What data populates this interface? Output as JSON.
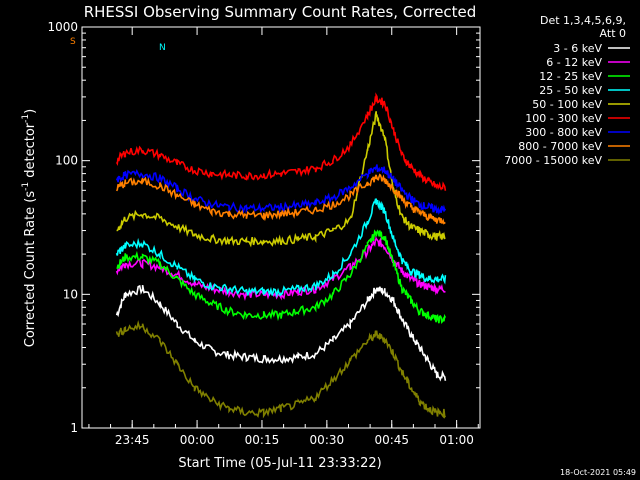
{
  "chart_data": {
    "type": "line",
    "title": "RHESSI Observing Summary Count Rates, Corrected",
    "xlabel": "Start Time (05-Jul-11 23:33:22)",
    "ylabel": "Corrected Count Rate (s",
    "ylabel_sup1": "-1",
    "ylabel_mid": " detector",
    "ylabel_sup2": "-1",
    "ylabel_end": ")",
    "y_scale": "log",
    "ylim": [
      1,
      1000
    ],
    "xlim_minutes": [
      0,
      92
    ],
    "x_ticks": [
      {
        "label": "23:45",
        "min": 11.6
      },
      {
        "label": "00:00",
        "min": 26.6
      },
      {
        "label": "00:15",
        "min": 41.6
      },
      {
        "label": "00:30",
        "min": 56.6
      },
      {
        "label": "00:45",
        "min": 71.6
      },
      {
        "label": "01:00",
        "min": 86.6
      }
    ],
    "y_ticks": [
      {
        "label": "1",
        "value": 1
      },
      {
        "label": "10",
        "value": 10
      },
      {
        "label": "100",
        "value": 100
      },
      {
        "label": "1000",
        "value": 1000
      }
    ],
    "legend_header": [
      "Det 1,3,4,5,6,9,",
      "Att 0"
    ],
    "series": [
      {
        "name": "3 - 6 keV",
        "color": "#ffffff",
        "x": [
          8,
          10,
          14,
          18,
          22,
          26,
          30,
          34,
          38,
          42,
          46,
          50,
          54,
          58,
          62,
          66,
          68,
          70,
          72,
          74,
          76,
          78,
          80,
          82,
          84
        ],
        "y": [
          7,
          10,
          11,
          8.5,
          6,
          4.5,
          3.8,
          3.5,
          3.4,
          3.3,
          3.3,
          3.4,
          3.6,
          4.5,
          6,
          9,
          11,
          10.5,
          9,
          6.5,
          5,
          4,
          3.2,
          2.5,
          2.4
        ]
      },
      {
        "name": "6 - 12 keV",
        "color": "#ff00ff",
        "x": [
          8,
          10,
          14,
          18,
          22,
          26,
          30,
          34,
          38,
          42,
          46,
          50,
          54,
          58,
          62,
          66,
          68,
          70,
          72,
          74,
          76,
          78,
          80,
          82,
          84
        ],
        "y": [
          15,
          17,
          17,
          16,
          14,
          12,
          11,
          10.5,
          10,
          10,
          10,
          10.5,
          11,
          13,
          16,
          21,
          25,
          23,
          18,
          15,
          13,
          12,
          11.5,
          11,
          11
        ]
      },
      {
        "name": "12 - 25 keV",
        "color": "#00ff00",
        "x": [
          8,
          10,
          14,
          18,
          22,
          26,
          30,
          34,
          38,
          42,
          46,
          50,
          54,
          58,
          62,
          66,
          68,
          70,
          72,
          74,
          76,
          78,
          80,
          82,
          84
        ],
        "y": [
          16,
          19,
          19,
          17,
          13,
          10,
          8.5,
          7.5,
          7,
          7,
          7,
          7.5,
          8,
          10,
          14,
          23,
          29,
          27,
          17,
          11,
          9,
          7.5,
          7,
          6.5,
          6.5
        ]
      },
      {
        "name": "25 - 50 keV",
        "color": "#00ffff",
        "x": [
          8,
          10,
          14,
          18,
          22,
          26,
          30,
          34,
          38,
          42,
          46,
          50,
          54,
          58,
          62,
          66,
          68,
          70,
          72,
          74,
          76,
          78,
          80,
          82,
          84
        ],
        "y": [
          20,
          23,
          24,
          20,
          16,
          13,
          11.5,
          11,
          10.5,
          10.5,
          10.5,
          11,
          11.5,
          14,
          20,
          35,
          50,
          42,
          26,
          18,
          15,
          14,
          13,
          13,
          13
        ]
      },
      {
        "name": "50 - 100 keV",
        "color": "#cccc00",
        "x": [
          8,
          10,
          14,
          18,
          22,
          26,
          30,
          34,
          38,
          42,
          46,
          50,
          54,
          58,
          62,
          66,
          68,
          70,
          72,
          74,
          76,
          78,
          80,
          82,
          84
        ],
        "y": [
          30,
          37,
          40,
          37,
          32,
          28,
          26,
          25,
          25,
          25,
          25,
          26,
          27,
          30,
          36,
          120,
          220,
          150,
          60,
          38,
          32,
          30,
          28,
          27,
          27
        ]
      },
      {
        "name": "100 - 300 keV",
        "color": "#ff0000",
        "x": [
          8,
          10,
          14,
          18,
          22,
          26,
          30,
          34,
          38,
          42,
          46,
          50,
          54,
          58,
          62,
          66,
          68,
          70,
          72,
          74,
          76,
          78,
          80,
          82,
          84
        ],
        "y": [
          100,
          115,
          120,
          110,
          95,
          85,
          80,
          78,
          77,
          78,
          80,
          83,
          88,
          100,
          130,
          220,
          290,
          270,
          170,
          110,
          90,
          78,
          70,
          64,
          63
        ]
      },
      {
        "name": "300 - 800 keV",
        "color": "#0000ff",
        "x": [
          8,
          10,
          14,
          18,
          22,
          26,
          30,
          34,
          38,
          42,
          46,
          50,
          54,
          58,
          62,
          66,
          68,
          70,
          72,
          74,
          76,
          78,
          80,
          82,
          84
        ],
        "y": [
          72,
          78,
          80,
          74,
          62,
          52,
          47,
          45,
          44,
          44,
          45,
          46,
          48,
          53,
          63,
          80,
          88,
          85,
          72,
          60,
          52,
          47,
          45,
          43,
          43
        ]
      },
      {
        "name": "800 - 7000 keV",
        "color": "#ff8000",
        "x": [
          8,
          10,
          14,
          18,
          22,
          26,
          30,
          34,
          38,
          42,
          46,
          50,
          54,
          58,
          62,
          66,
          68,
          70,
          72,
          74,
          76,
          78,
          80,
          82,
          84
        ],
        "y": [
          62,
          68,
          70,
          65,
          55,
          47,
          42,
          40,
          39,
          39,
          40,
          41,
          43,
          47,
          55,
          68,
          75,
          72,
          62,
          52,
          45,
          41,
          38,
          36,
          36
        ]
      },
      {
        "name": "7000 - 15000 keV",
        "color": "#808000",
        "x": [
          8,
          10,
          14,
          18,
          22,
          26,
          30,
          34,
          38,
          42,
          46,
          50,
          54,
          58,
          62,
          66,
          68,
          70,
          72,
          74,
          76,
          78,
          80,
          82,
          84
        ],
        "y": [
          5,
          5.5,
          5.8,
          4.5,
          3,
          2,
          1.6,
          1.4,
          1.3,
          1.3,
          1.4,
          1.5,
          1.7,
          2.3,
          3.2,
          4.5,
          5,
          4.6,
          3.6,
          2.6,
          2,
          1.6,
          1.4,
          1.3,
          1.3
        ]
      }
    ],
    "annotations": [
      "S",
      "N"
    ],
    "footer_date": "18-Oct-2021 05:49"
  }
}
